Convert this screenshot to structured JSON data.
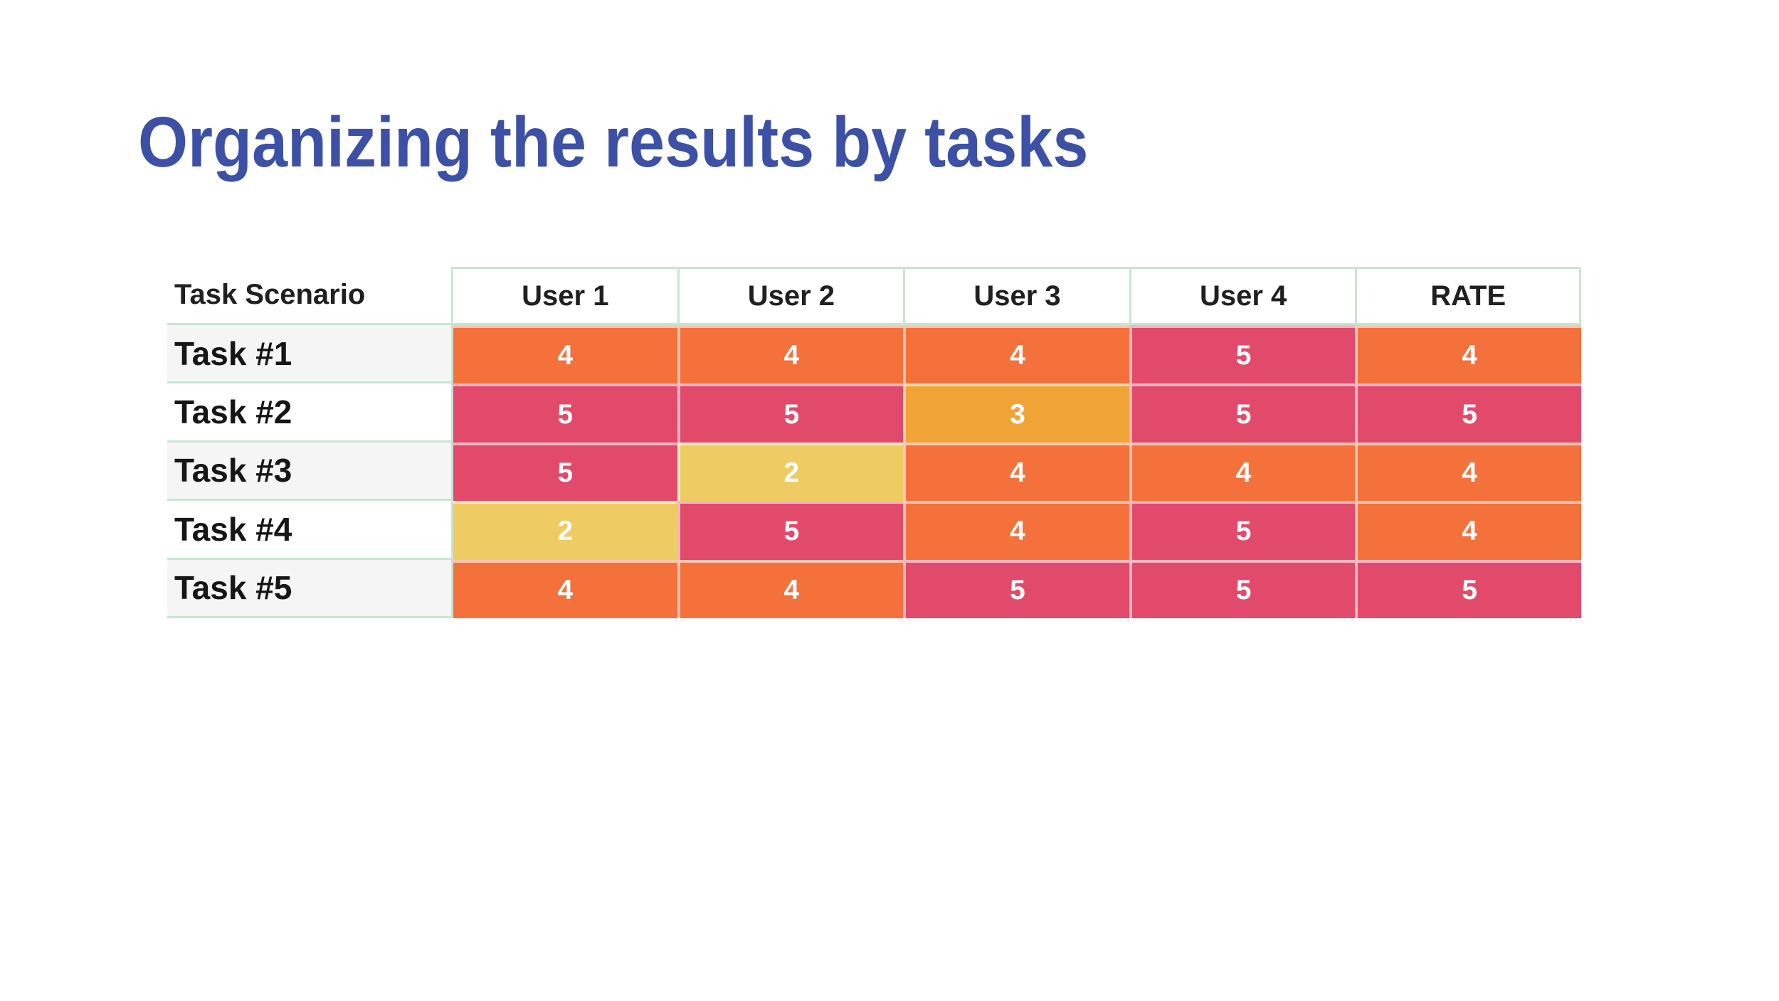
{
  "slide": {
    "title": "Organizing the results by tasks"
  },
  "table": {
    "columns": [
      "Task Scenario",
      "User 1",
      "User 2",
      "User 3",
      "User 4",
      "RATE"
    ],
    "rows": [
      {
        "label": "Task #1",
        "values": [
          "4",
          "4",
          "4",
          "5",
          "4"
        ]
      },
      {
        "label": "Task #2",
        "values": [
          "5",
          "5",
          "3",
          "5",
          "5"
        ]
      },
      {
        "label": "Task #3",
        "values": [
          "5",
          "2",
          "4",
          "4",
          "4"
        ]
      },
      {
        "label": "Task #4",
        "values": [
          "2",
          "5",
          "4",
          "5",
          "4"
        ]
      },
      {
        "label": "Task #5",
        "values": [
          "4",
          "4",
          "5",
          "5",
          "5"
        ]
      }
    ]
  },
  "colors": {
    "title_blue": "#3C50A5",
    "score_2": "#EECB63",
    "score_3": "#F1A436",
    "score_4": "#F4713C",
    "score_5": "#E24A6B",
    "score_text": "#FFFFFF",
    "border_green": "#C9E5D3",
    "label_alt_bg": "#F4F5F4",
    "header_text": "#202020"
  }
}
